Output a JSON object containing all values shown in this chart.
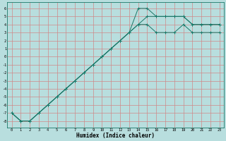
{
  "xlabel": "Humidex (Indice chaleur)",
  "bg_color": "#b8dede",
  "grid_color": "#d08888",
  "line_color": "#1a7868",
  "x_humidex": [
    0,
    1,
    2,
    3,
    4,
    5,
    6,
    7,
    8,
    9,
    10,
    11,
    12,
    13,
    14,
    15,
    16,
    17,
    18,
    19,
    20,
    21,
    22,
    23
  ],
  "line1_y": [
    -7,
    -8,
    -8,
    -7,
    -6,
    -5,
    -4,
    -3,
    -2,
    -1,
    0,
    1,
    2,
    3,
    4,
    4,
    3,
    3,
    3,
    4,
    3,
    3,
    3,
    3
  ],
  "line2_y": [
    -7,
    -8,
    -8,
    -7,
    -6,
    -5,
    -4,
    -3,
    -2,
    -1,
    0,
    1,
    2,
    3,
    6,
    6,
    5,
    5,
    5,
    5,
    4,
    4,
    4,
    4
  ],
  "line3_y": [
    -7,
    -8,
    -8,
    -7,
    -6,
    -5,
    -4,
    -3,
    -2,
    -1,
    0,
    1,
    2,
    3,
    4,
    5,
    5,
    5,
    5,
    5,
    4,
    4,
    4,
    4
  ],
  "ylim": [
    -8.8,
    6.8
  ],
  "xlim": [
    -0.5,
    23.5
  ],
  "yticks": [
    6,
    5,
    4,
    3,
    2,
    1,
    0,
    -1,
    -2,
    -3,
    -4,
    -5,
    -6,
    -7,
    -8
  ],
  "xticks": [
    0,
    1,
    2,
    3,
    4,
    5,
    6,
    7,
    8,
    9,
    10,
    11,
    12,
    13,
    14,
    15,
    16,
    17,
    18,
    19,
    20,
    21,
    22,
    23
  ]
}
